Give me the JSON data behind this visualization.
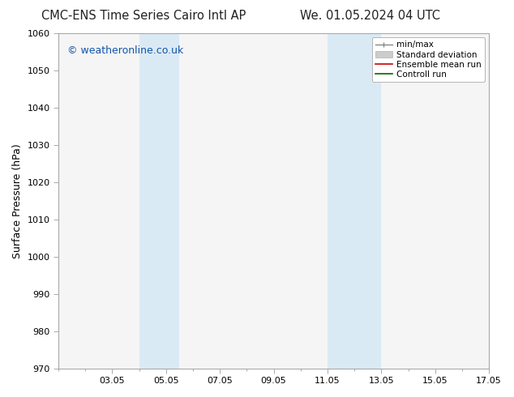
{
  "title_left": "CMC-ENS Time Series Cairo Intl AP",
  "title_right": "We. 01.05.2024 04 UTC",
  "ylabel": "Surface Pressure (hPa)",
  "ylim": [
    970,
    1060
  ],
  "yticks": [
    970,
    980,
    990,
    1000,
    1010,
    1020,
    1030,
    1040,
    1050,
    1060
  ],
  "xlim": [
    1.0,
    17.0
  ],
  "xtick_labels": [
    "03.05",
    "05.05",
    "07.05",
    "09.05",
    "11.05",
    "13.05",
    "15.05",
    "17.05"
  ],
  "xtick_positions": [
    3,
    5,
    7,
    9,
    11,
    13,
    15,
    17
  ],
  "shaded_regions": [
    {
      "start": 4.0,
      "end": 5.5,
      "color": "#daeaf5"
    },
    {
      "start": 11.0,
      "end": 13.0,
      "color": "#daeaf5"
    }
  ],
  "watermark": "© weatheronline.co.uk",
  "watermark_color": "#1155aa",
  "legend_entries": [
    {
      "label": "min/max",
      "color": "#888888",
      "type": "line_cap"
    },
    {
      "label": "Standard deviation",
      "color": "#cccccc",
      "type": "box"
    },
    {
      "label": "Ensemble mean run",
      "color": "#cc0000",
      "type": "line"
    },
    {
      "label": "Controll run",
      "color": "#006600",
      "type": "line"
    }
  ],
  "plot_bg_color": "#f5f5f5",
  "fig_bg_color": "#ffffff",
  "spine_color": "#aaaaaa",
  "title_fontsize": 10.5,
  "label_fontsize": 9,
  "tick_fontsize": 8,
  "legend_fontsize": 7.5,
  "watermark_fontsize": 9
}
